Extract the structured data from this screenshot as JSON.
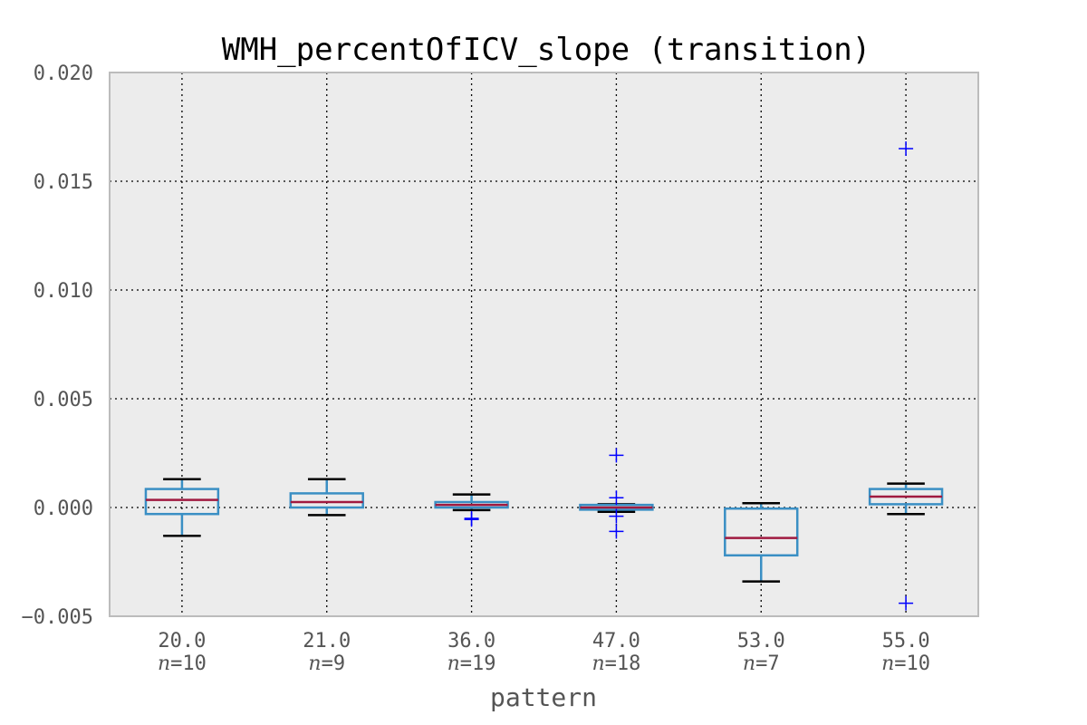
{
  "chart_data": {
    "type": "box",
    "title": "WMH_percentOfICV_slope (transition)",
    "xlabel": "pattern",
    "ylabel": "",
    "ylim": [
      -0.005,
      0.02
    ],
    "yticks": [
      "−0.005",
      "0.000",
      "0.005",
      "0.010",
      "0.015",
      "0.020"
    ],
    "ytick_values": [
      -0.005,
      0.0,
      0.005,
      0.01,
      0.015,
      0.02
    ],
    "grid": true,
    "colors": {
      "plot_background": "#ececec",
      "box": "#3a8fc4",
      "median": "#a01a40",
      "whisker_cap": "#000000",
      "flier": "#0000ff",
      "frame": "#bcbcbc"
    },
    "categories": [
      "20.0",
      "21.0",
      "36.0",
      "47.0",
      "53.0",
      "55.0"
    ],
    "n_prefix": "n",
    "n_labels": [
      "=10",
      "=9",
      "=19",
      "=18",
      "=7",
      "=10"
    ],
    "boxes": [
      {
        "q1": -0.0003,
        "median": 0.00035,
        "q3": 0.00085,
        "whisker_low": -0.0013,
        "whisker_high": 0.0013,
        "fliers": []
      },
      {
        "q1": 0.0,
        "median": 0.00025,
        "q3": 0.00065,
        "whisker_low": -0.00035,
        "whisker_high": 0.0013,
        "fliers": []
      },
      {
        "q1": 0.0,
        "median": 0.00012,
        "q3": 0.00025,
        "whisker_low": -0.00012,
        "whisker_high": 0.0006,
        "fliers": [
          -0.0005,
          -0.00055
        ]
      },
      {
        "q1": -0.0001,
        "median": 0.0,
        "q3": 0.00012,
        "whisker_low": -0.0002,
        "whisker_high": 0.00015,
        "fliers": [
          0.0024,
          0.00045,
          -0.0004,
          -0.0011
        ]
      },
      {
        "q1": -0.0022,
        "median": -0.0014,
        "q3": -5e-05,
        "whisker_low": -0.0034,
        "whisker_high": 0.0002,
        "fliers": []
      },
      {
        "q1": 0.00015,
        "median": 0.0005,
        "q3": 0.00085,
        "whisker_low": -0.0003,
        "whisker_high": 0.0011,
        "fliers": [
          0.0165,
          -0.0044
        ]
      }
    ]
  }
}
